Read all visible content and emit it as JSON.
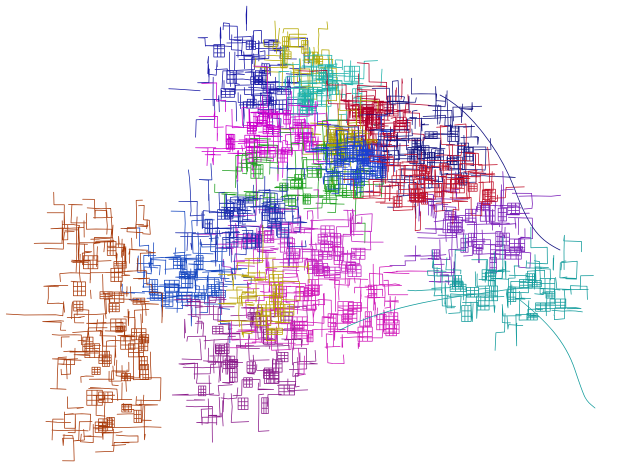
{
  "map": {
    "background": "#ffffff",
    "layer_kind": "road-network",
    "districts": [
      {
        "id": "northwest-navy",
        "color": "#1a1aa6"
      },
      {
        "id": "north-olive",
        "color": "#b3a800"
      },
      {
        "id": "north-teal",
        "color": "#20b2aa"
      },
      {
        "id": "northeast-crimson",
        "color": "#b5002a"
      },
      {
        "id": "center-olive",
        "color": "#aaa000"
      },
      {
        "id": "center-magenta",
        "color": "#cc00cc"
      },
      {
        "id": "center-green",
        "color": "#22a022"
      },
      {
        "id": "center-blue",
        "color": "#1b3fd0"
      },
      {
        "id": "east-navy",
        "color": "#141480"
      },
      {
        "id": "east-purple",
        "color": "#7a1fb8"
      },
      {
        "id": "east-red",
        "color": "#c0102a"
      },
      {
        "id": "mid-magenta",
        "color": "#c020c0"
      },
      {
        "id": "mid-blue",
        "color": "#1d2fae"
      },
      {
        "id": "west-blue",
        "color": "#1748c0"
      },
      {
        "id": "southwest-rust",
        "color": "#a83a0a"
      },
      {
        "id": "south-purple",
        "color": "#8a1a8a"
      },
      {
        "id": "south-magenta",
        "color": "#d01ab8"
      },
      {
        "id": "south-olive",
        "color": "#b8a000"
      },
      {
        "id": "southeast-teal",
        "color": "#139c9c"
      }
    ]
  }
}
